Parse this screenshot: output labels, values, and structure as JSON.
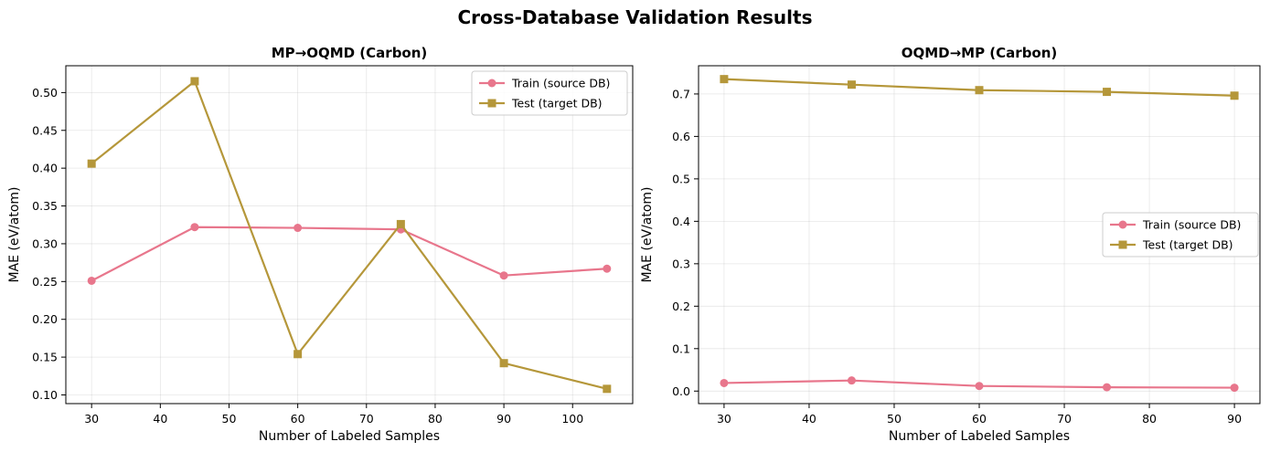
{
  "figure_title": "Cross-Database Validation Results",
  "colors": {
    "train": "#e8768c",
    "test": "#b5973a"
  },
  "chart_data": [
    {
      "type": "line",
      "title": "MP→OQMD (Carbon)",
      "xlabel": "Number of Labeled Samples",
      "ylabel": "MAE (eV/atom)",
      "xlim": [
        26.25,
        108.75
      ],
      "ylim": [
        0.0885,
        0.5355
      ],
      "xticks": [
        30,
        40,
        50,
        60,
        70,
        80,
        90,
        100
      ],
      "xtick_labels": [
        "30",
        "40",
        "50",
        "60",
        "70",
        "80",
        "90",
        "100"
      ],
      "yticks": [
        0.1,
        0.15,
        0.2,
        0.25,
        0.3,
        0.35,
        0.4,
        0.45,
        0.5
      ],
      "ytick_labels": [
        "0.10",
        "0.15",
        "0.20",
        "0.25",
        "0.30",
        "0.35",
        "0.40",
        "0.45",
        "0.50"
      ],
      "grid": true,
      "legend_position": "upper right",
      "x": [
        30,
        45,
        60,
        75,
        90,
        105
      ],
      "series": [
        {
          "name": "Train (source DB)",
          "marker": "circle",
          "color_key": "train",
          "values": [
            0.251,
            0.322,
            0.321,
            0.319,
            0.258,
            0.267
          ]
        },
        {
          "name": "Test (target DB)",
          "marker": "square",
          "color_key": "test",
          "values": [
            0.406,
            0.515,
            0.154,
            0.326,
            0.142,
            0.108
          ]
        }
      ]
    },
    {
      "type": "line",
      "title": "OQMD→MP (Carbon)",
      "xlabel": "Number of Labeled Samples",
      "ylabel": "MAE (eV/atom)",
      "xlim": [
        27,
        93
      ],
      "ylim": [
        -0.0295,
        0.7665
      ],
      "xticks": [
        30,
        40,
        50,
        60,
        70,
        80,
        90
      ],
      "xtick_labels": [
        "30",
        "40",
        "50",
        "60",
        "70",
        "80",
        "90"
      ],
      "yticks": [
        0.0,
        0.1,
        0.2,
        0.3,
        0.4,
        0.5,
        0.6,
        0.7
      ],
      "ytick_labels": [
        "0.0",
        "0.1",
        "0.2",
        "0.3",
        "0.4",
        "0.5",
        "0.6",
        "0.7"
      ],
      "grid": true,
      "legend_position": "center right",
      "x": [
        30,
        45,
        60,
        75,
        90
      ],
      "series": [
        {
          "name": "Train (source DB)",
          "marker": "circle",
          "color_key": "train",
          "values": [
            0.019,
            0.025,
            0.012,
            0.009,
            0.008
          ]
        },
        {
          "name": "Test (target DB)",
          "marker": "square",
          "color_key": "test",
          "values": [
            0.735,
            0.722,
            0.709,
            0.705,
            0.696
          ]
        }
      ]
    }
  ]
}
